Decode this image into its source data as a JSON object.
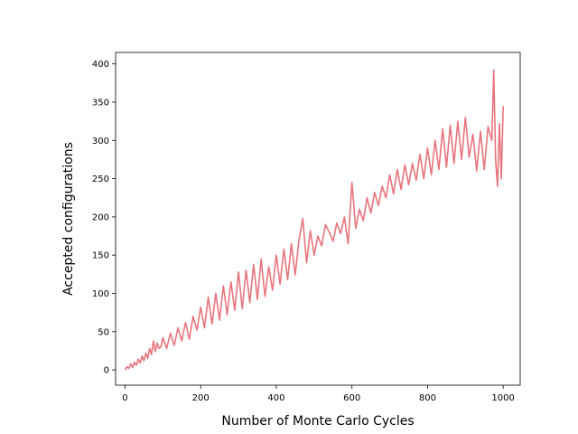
{
  "chart_data": {
    "type": "line",
    "title": "",
    "xlabel": "Number of Monte Carlo Cycles",
    "ylabel": "Accepted configurations",
    "xlim": [
      -25,
      1045
    ],
    "ylim": [
      -20,
      415
    ],
    "xticks": [
      0,
      200,
      400,
      600,
      800,
      1000
    ],
    "yticks": [
      0,
      50,
      100,
      150,
      200,
      250,
      300,
      350,
      400
    ],
    "grid": false,
    "legend": "none",
    "color": "#e8747c",
    "series": [
      {
        "x": [
          0,
          5,
          10,
          15,
          20,
          25,
          30,
          35,
          40,
          45,
          50,
          55,
          60,
          65,
          70,
          75,
          80,
          85,
          90,
          95,
          100,
          110,
          120,
          130,
          140,
          150,
          160,
          170,
          180,
          190,
          200,
          210,
          220,
          230,
          240,
          250,
          260,
          270,
          280,
          290,
          300,
          310,
          320,
          330,
          340,
          350,
          360,
          370,
          380,
          390,
          400,
          410,
          420,
          430,
          440,
          450,
          460,
          470,
          480,
          490,
          500,
          510,
          520,
          530,
          540,
          550,
          560,
          570,
          580,
          590,
          600,
          610,
          620,
          630,
          640,
          650,
          660,
          670,
          680,
          690,
          700,
          710,
          720,
          730,
          740,
          750,
          760,
          770,
          780,
          790,
          800,
          810,
          820,
          830,
          840,
          850,
          860,
          870,
          880,
          890,
          900,
          910,
          920,
          930,
          940,
          950,
          960,
          970,
          975,
          980,
          985,
          990,
          995,
          1000
        ],
        "y": [
          0,
          4,
          2,
          8,
          3,
          10,
          6,
          14,
          9,
          18,
          12,
          22,
          15,
          28,
          20,
          38,
          24,
          35,
          28,
          30,
          42,
          28,
          48,
          32,
          55,
          38,
          62,
          40,
          70,
          52,
          82,
          55,
          95,
          60,
          100,
          65,
          110,
          72,
          115,
          78,
          128,
          80,
          130,
          88,
          138,
          92,
          145,
          96,
          135,
          104,
          150,
          112,
          158,
          118,
          165,
          124,
          170,
          198,
          140,
          182,
          150,
          175,
          162,
          190,
          180,
          168,
          192,
          178,
          200,
          165,
          245,
          185,
          210,
          195,
          225,
          205,
          232,
          215,
          240,
          225,
          255,
          230,
          262,
          236,
          268,
          242,
          270,
          248,
          282,
          250,
          290,
          255,
          300,
          262,
          315,
          265,
          320,
          270,
          325,
          275,
          330,
          278,
          308,
          260,
          312,
          262,
          318,
          300,
          392,
          275,
          240,
          322,
          250,
          345
        ]
      }
    ]
  }
}
